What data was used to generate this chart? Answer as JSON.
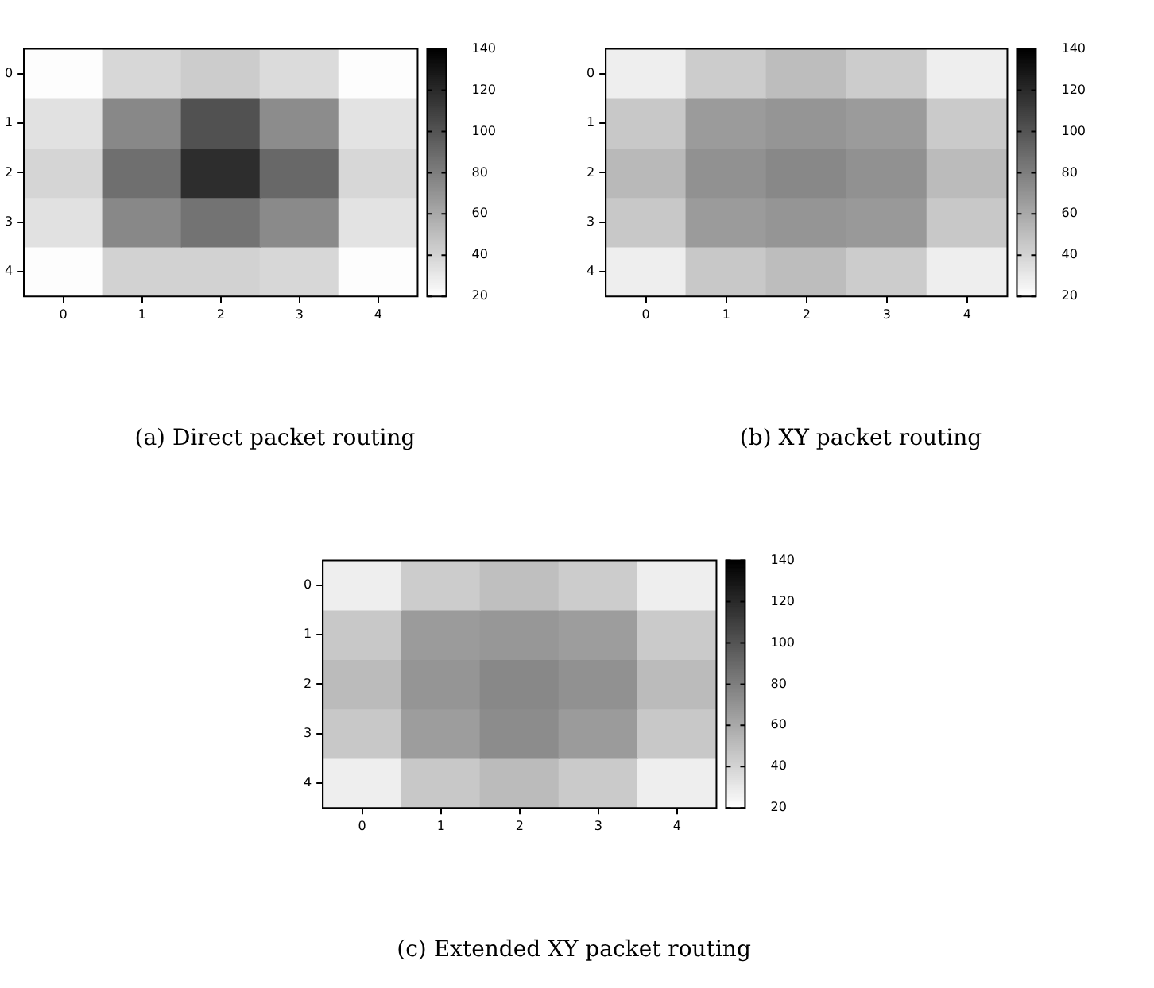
{
  "chart_data": [
    {
      "type": "heatmap",
      "title": "(a) Direct packet routing",
      "categories": [
        "0",
        "1",
        "2",
        "3",
        "4"
      ],
      "y_categories": [
        "0",
        "1",
        "2",
        "3",
        "4"
      ],
      "cells": [
        [
          21,
          39,
          44,
          37,
          21
        ],
        [
          34,
          76,
          102,
          74,
          33
        ],
        [
          40,
          88,
          119,
          91,
          39
        ],
        [
          34,
          76,
          86,
          75,
          33
        ],
        [
          21,
          41,
          41,
          39,
          21
        ]
      ],
      "clim": [
        20,
        140
      ],
      "cticks": [
        20,
        40,
        60,
        80,
        100,
        120,
        140
      ]
    },
    {
      "type": "heatmap",
      "title": "(b) XY packet routing",
      "categories": [
        "0",
        "1",
        "2",
        "3",
        "4"
      ],
      "y_categories": [
        "0",
        "1",
        "2",
        "3",
        "4"
      ],
      "cells": [
        [
          28,
          44,
          51,
          44,
          28
        ],
        [
          46,
          67,
          70,
          67,
          45
        ],
        [
          53,
          72,
          76,
          72,
          52
        ],
        [
          46,
          67,
          70,
          68,
          46
        ],
        [
          28,
          46,
          51,
          44,
          28
        ]
      ],
      "clim": [
        20,
        140
      ],
      "cticks": [
        20,
        40,
        60,
        80,
        100,
        120,
        140
      ]
    },
    {
      "type": "heatmap",
      "title": "(c) Extended XY packet routing",
      "categories": [
        "0",
        "1",
        "2",
        "3",
        "4"
      ],
      "y_categories": [
        "0",
        "1",
        "2",
        "3",
        "4"
      ],
      "cells": [
        [
          28,
          44,
          50,
          44,
          28
        ],
        [
          46,
          67,
          69,
          66,
          45
        ],
        [
          52,
          70,
          76,
          72,
          52
        ],
        [
          46,
          66,
          74,
          67,
          46
        ],
        [
          28,
          46,
          52,
          45,
          28
        ]
      ],
      "clim": [
        20,
        140
      ],
      "cticks": [
        20,
        40,
        60,
        80,
        100,
        120,
        140
      ]
    }
  ]
}
